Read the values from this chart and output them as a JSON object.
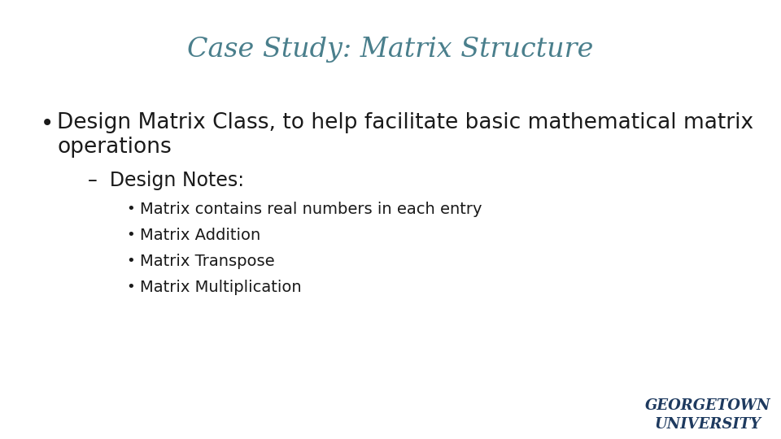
{
  "title": "Case Study: Matrix Structure",
  "title_color": "#4a7f8c",
  "title_fontsize": 24,
  "background_color": "#ffffff",
  "bullet1_text": "Design Matrix Class, to help facilitate basic mathematical matrix",
  "bullet1_text2": "operations",
  "bullet1_fontsize": 19,
  "bullet1_color": "#1a1a1a",
  "sub_bullet_label": "–  Design Notes:",
  "sub_bullet_fontsize": 17,
  "sub_bullet_color": "#1a1a1a",
  "sub_sub_bullets": [
    "Matrix contains real numbers in each entry",
    "Matrix Addition",
    "Matrix Transpose",
    "Matrix Multiplication"
  ],
  "sub_sub_fontsize": 14,
  "sub_sub_color": "#1a1a1a",
  "logo_text_line1": "GEORGETOWN",
  "logo_text_line2": "UNIVERSITY",
  "logo_color": "#1e3a5f",
  "logo_fontsize": 13
}
